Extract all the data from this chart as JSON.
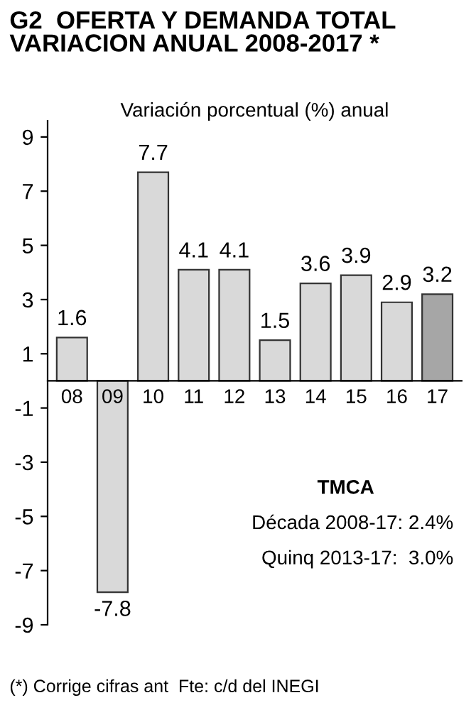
{
  "chart_data": {
    "type": "bar",
    "title": "G2  OFERTA Y DEMANDA TOTAL\nVARIACION ANUAL 2008-2017 *",
    "subtitle": "Variación porcentual (%) anual",
    "categories": [
      "08",
      "09",
      "10",
      "11",
      "12",
      "13",
      "14",
      "15",
      "16",
      "17"
    ],
    "values": [
      1.6,
      -7.8,
      7.7,
      4.1,
      4.1,
      1.5,
      3.6,
      3.9,
      2.9,
      3.2
    ],
    "colors": [
      "#d9d9d9",
      "#d9d9d9",
      "#d9d9d9",
      "#d9d9d9",
      "#d9d9d9",
      "#d9d9d9",
      "#d9d9d9",
      "#d9d9d9",
      "#d9d9d9",
      "#a6a6a6"
    ],
    "ylim": [
      -9,
      9.6
    ],
    "yticks": [
      -9,
      -7,
      -5,
      -3,
      -1,
      1,
      3,
      5,
      7,
      9
    ],
    "data_labels": true,
    "grid": false,
    "legend": false,
    "annotations": [
      "TMCA",
      "Década 2008-17: 2.4%",
      "Quinq 2013-17:  3.0%",
      "(*) Corrige cifras ant  Fte: c/d del INEGI"
    ]
  }
}
